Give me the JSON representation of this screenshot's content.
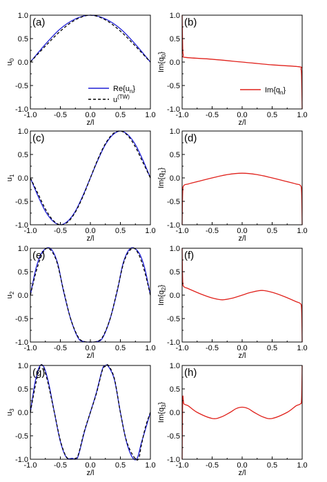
{
  "colors": {
    "blue": "#1f1fd6",
    "red": "#e0201a",
    "black": "#000000",
    "axis": "#000000"
  },
  "chart_data": [
    {
      "id": "a",
      "panel_label": "(a)",
      "type": "line",
      "xlabel": "z/l",
      "ylabel": "u",
      "ylabel_sub": "0",
      "xlim": [
        -1.0,
        1.0
      ],
      "ylim": [
        -1.0,
        1.0
      ],
      "xticks": [
        "-1.0",
        "-0.5",
        "0.0",
        "0.5",
        "1.0"
      ],
      "yticks": [
        "-1.0",
        "-0.5",
        "0.0",
        "0.5",
        "1.0"
      ],
      "series": [
        {
          "name": "Re{u_n}",
          "style": "solid",
          "color": "#1f1fd6",
          "x": [
            -1.0,
            -0.75,
            -0.5,
            -0.25,
            0.0,
            0.25,
            0.5,
            0.75,
            1.0
          ],
          "y": [
            0.0,
            0.38,
            0.71,
            0.92,
            1.0,
            0.92,
            0.71,
            0.38,
            0.0
          ]
        },
        {
          "name": "u^(TW)",
          "style": "dashed",
          "color": "#000000",
          "x": [
            -1.0,
            -0.75,
            -0.5,
            -0.25,
            0.0,
            0.25,
            0.5,
            0.75,
            1.0
          ],
          "y": [
            0.0,
            0.34,
            0.66,
            0.9,
            1.0,
            0.9,
            0.66,
            0.34,
            0.0
          ]
        }
      ],
      "legend": {
        "position": "bottom-right",
        "entries": [
          {
            "text": "Re{u",
            "sub": "n",
            "tail": "}",
            "style": "solid",
            "color": "#1f1fd6"
          },
          {
            "text": "u",
            "sup": "(TW)",
            "tail": "",
            "style": "dashed",
            "color": "#000000"
          }
        ]
      }
    },
    {
      "id": "b",
      "panel_label": "(b)",
      "type": "line",
      "xlabel": "z/l",
      "ylabel": "Im{q",
      "ylabel_sub": "0",
      "ylabel_tail": "}",
      "xlim": [
        -1.0,
        1.0
      ],
      "ylim": [
        -1.0,
        1.0
      ],
      "xticks": [
        "-1.0",
        "-0.5",
        "0.0",
        "0.5",
        "1.0"
      ],
      "yticks": [
        "-1.0",
        "-0.5",
        "0.0",
        "0.5",
        "1.0"
      ],
      "series": [
        {
          "name": "Im{q_n}",
          "style": "solid",
          "color": "#e0201a",
          "x": [
            -1.0,
            -0.99,
            -0.98,
            -0.95,
            -0.5,
            0.0,
            0.5,
            0.95,
            0.98,
            0.99,
            1.0
          ],
          "y": [
            1.0,
            0.3,
            0.15,
            0.1,
            0.06,
            0.0,
            -0.06,
            -0.1,
            -0.15,
            -0.3,
            -1.0
          ]
        }
      ],
      "legend": {
        "position": "bottom-right",
        "entries": [
          {
            "text": "Im{q",
            "sub": "n",
            "tail": "}",
            "style": "solid",
            "color": "#e0201a"
          }
        ]
      }
    },
    {
      "id": "c",
      "panel_label": "(c)",
      "type": "line",
      "xlabel": "z/l",
      "ylabel": "u",
      "ylabel_sub": "1",
      "xlim": [
        -1.0,
        1.0
      ],
      "ylim": [
        -1.0,
        1.0
      ],
      "xticks": [
        "-1.0",
        "-0.5",
        "0.0",
        "0.5",
        "1.0"
      ],
      "yticks": [
        "-1.0",
        "-0.5",
        "0.0",
        "0.5",
        "1.0"
      ],
      "series": [
        {
          "name": "Re{u_n}",
          "style": "solid",
          "color": "#1f1fd6",
          "x": [
            -1.0,
            -0.875,
            -0.75,
            -0.625,
            -0.5,
            -0.375,
            -0.25,
            -0.125,
            0.0,
            0.125,
            0.25,
            0.375,
            0.5,
            0.625,
            0.75,
            0.875,
            1.0
          ],
          "y": [
            0.0,
            -0.38,
            -0.71,
            -0.92,
            -1.0,
            -0.92,
            -0.71,
            -0.38,
            0.0,
            0.38,
            0.71,
            0.92,
            1.0,
            0.92,
            0.71,
            0.38,
            0.0
          ]
        },
        {
          "name": "u^(TW)",
          "style": "dashed",
          "color": "#000000",
          "x": [
            -1.0,
            -0.875,
            -0.75,
            -0.625,
            -0.5,
            -0.375,
            -0.25,
            -0.125,
            0.0,
            0.125,
            0.25,
            0.375,
            0.5,
            0.625,
            0.75,
            0.875,
            1.0
          ],
          "y": [
            0.0,
            -0.33,
            -0.66,
            -0.9,
            -1.0,
            -0.94,
            -0.73,
            -0.4,
            0.0,
            0.4,
            0.73,
            0.94,
            1.0,
            0.9,
            0.66,
            0.33,
            0.0
          ]
        }
      ]
    },
    {
      "id": "d",
      "panel_label": "(d)",
      "type": "line",
      "xlabel": "z/l",
      "ylabel": "Im{q",
      "ylabel_sub": "1",
      "ylabel_tail": "}",
      "xlim": [
        -1.0,
        1.0
      ],
      "ylim": [
        -1.0,
        1.0
      ],
      "xticks": [
        "-1.0",
        "-0.5",
        "0.0",
        "0.5",
        "1.0"
      ],
      "yticks": [
        "-1.0",
        "-0.5",
        "0.0",
        "0.5",
        "1.0"
      ],
      "series": [
        {
          "name": "Im{q_n}",
          "style": "solid",
          "color": "#e0201a",
          "x": [
            -1.0,
            -0.99,
            -0.97,
            -0.9,
            -0.75,
            -0.5,
            -0.25,
            0.0,
            0.25,
            0.5,
            0.75,
            0.9,
            0.97,
            0.99,
            1.0
          ],
          "y": [
            -1.0,
            -0.3,
            -0.16,
            -0.13,
            -0.08,
            0.0,
            0.07,
            0.1,
            0.07,
            0.0,
            -0.08,
            -0.13,
            -0.16,
            -0.3,
            -1.0
          ]
        }
      ]
    },
    {
      "id": "e",
      "panel_label": "(e)",
      "type": "line",
      "xlabel": "z/l",
      "ylabel": "u",
      "ylabel_sub": "2",
      "xlim": [
        -1.0,
        1.0
      ],
      "ylim": [
        -1.0,
        1.0
      ],
      "xticks": [
        "-1.0",
        "-0.5",
        "0.0",
        "0.5",
        "1.0"
      ],
      "yticks": [
        "-1.0",
        "-0.5",
        "0.0",
        "0.5",
        "1.0"
      ],
      "series": [
        {
          "name": "Re{u_n}",
          "style": "solid",
          "color": "#1f1fd6",
          "x": [
            -1.0,
            -0.9,
            -0.8,
            -0.67,
            -0.55,
            -0.45,
            -0.33,
            -0.2,
            -0.1,
            0.0,
            0.1,
            0.2,
            0.33,
            0.45,
            0.55,
            0.67,
            0.8,
            0.9,
            1.0
          ],
          "y": [
            0.0,
            0.6,
            0.92,
            1.0,
            0.7,
            0.1,
            -0.5,
            -0.92,
            -0.99,
            -1.0,
            -0.99,
            -0.92,
            -0.5,
            0.1,
            0.7,
            1.0,
            0.92,
            0.6,
            0.0
          ]
        },
        {
          "name": "u^(TW)",
          "style": "dashed",
          "color": "#000000",
          "x": [
            -1.0,
            -0.9,
            -0.8,
            -0.7,
            -0.57,
            -0.45,
            -0.33,
            -0.2,
            -0.1,
            0.0,
            0.1,
            0.2,
            0.33,
            0.45,
            0.57,
            0.7,
            0.8,
            0.9,
            1.0
          ],
          "y": [
            0.0,
            0.52,
            0.88,
            1.0,
            0.75,
            0.12,
            -0.5,
            -0.9,
            -0.99,
            -1.0,
            -0.99,
            -0.9,
            -0.5,
            0.12,
            0.75,
            1.0,
            0.88,
            0.52,
            0.0
          ]
        }
      ]
    },
    {
      "id": "f",
      "panel_label": "(f)",
      "type": "line",
      "xlabel": "z/l",
      "ylabel": "Im{q",
      "ylabel_sub": "2",
      "ylabel_tail": "}",
      "xlim": [
        -1.0,
        1.0
      ],
      "ylim": [
        -1.0,
        1.0
      ],
      "xticks": [
        "-1.0",
        "-0.5",
        "0.0",
        "0.5",
        "1.0"
      ],
      "yticks": [
        "-1.0",
        "-0.5",
        "0.0",
        "0.5",
        "1.0"
      ],
      "series": [
        {
          "name": "Im{q_n}",
          "style": "solid",
          "color": "#e0201a",
          "x": [
            -1.0,
            -0.99,
            -0.97,
            -0.9,
            -0.7,
            -0.5,
            -0.33,
            -0.15,
            0.0,
            0.15,
            0.33,
            0.5,
            0.7,
            0.9,
            0.97,
            0.99,
            1.0
          ],
          "y": [
            1.0,
            0.3,
            0.18,
            0.14,
            0.03,
            -0.06,
            -0.1,
            -0.06,
            0.0,
            0.06,
            0.1,
            0.06,
            -0.03,
            -0.14,
            -0.18,
            -0.3,
            -1.0
          ]
        }
      ]
    },
    {
      "id": "g",
      "panel_label": "(g)",
      "type": "line",
      "xlabel": "z/l",
      "ylabel": "u",
      "ylabel_sub": "3",
      "xlim": [
        -1.0,
        1.0
      ],
      "ylim": [
        -1.0,
        1.0
      ],
      "xticks": [
        "-1.0",
        "-0.5",
        "0.0",
        "0.5",
        "1.0"
      ],
      "yticks": [
        "-1.0",
        "-0.5",
        "0.0",
        "0.5",
        "1.0"
      ],
      "series": [
        {
          "name": "Re{u_n}",
          "style": "solid",
          "color": "#1f1fd6",
          "x": [
            -1.0,
            -0.92,
            -0.85,
            -0.78,
            -0.7,
            -0.6,
            -0.5,
            -0.4,
            -0.3,
            -0.25,
            -0.2,
            -0.1,
            0.0,
            0.1,
            0.2,
            0.25,
            0.3,
            0.4,
            0.5,
            0.6,
            0.7,
            0.78,
            0.85,
            0.92,
            1.0
          ],
          "y": [
            0.0,
            0.65,
            0.97,
            0.98,
            0.65,
            0.0,
            -0.62,
            -0.96,
            -0.98,
            -1.0,
            -0.92,
            -0.42,
            0.0,
            0.42,
            0.92,
            1.0,
            0.98,
            0.7,
            0.0,
            -0.62,
            -0.96,
            -0.98,
            -0.65,
            -0.35,
            0.0
          ]
        },
        {
          "name": "u^(TW)",
          "style": "dashed",
          "color": "#000000",
          "x": [
            -1.0,
            -0.92,
            -0.85,
            -0.8,
            -0.72,
            -0.6,
            -0.5,
            -0.4,
            -0.3,
            -0.25,
            -0.2,
            -0.1,
            0.0,
            0.1,
            0.2,
            0.25,
            0.3,
            0.4,
            0.5,
            0.6,
            0.72,
            0.8,
            0.85,
            0.92,
            1.0
          ],
          "y": [
            0.0,
            0.55,
            0.93,
            1.0,
            0.7,
            0.0,
            -0.6,
            -0.95,
            -1.0,
            -0.98,
            -0.9,
            -0.4,
            0.0,
            0.4,
            0.9,
            0.98,
            1.0,
            0.72,
            0.0,
            -0.6,
            -0.94,
            -1.0,
            -0.7,
            -0.3,
            0.0
          ]
        }
      ]
    },
    {
      "id": "h",
      "panel_label": "(h)",
      "type": "line",
      "xlabel": "z/l",
      "ylabel": "Im{q",
      "ylabel_sub": "3",
      "ylabel_tail": "}",
      "xlim": [
        -1.0,
        1.0
      ],
      "ylim": [
        -1.0,
        1.0
      ],
      "xticks": [
        "-1.0",
        "-0.5",
        "0.0",
        "0.5",
        "1.0"
      ],
      "yticks": [
        "-1.0",
        "-0.5",
        "0.0",
        "0.5",
        "1.0"
      ],
      "series": [
        {
          "name": "Im{q_n}",
          "style": "solid",
          "color": "#e0201a",
          "x": [
            -1.0,
            -0.99,
            -0.97,
            -0.9,
            -0.75,
            -0.5,
            -0.35,
            -0.2,
            -0.1,
            0.0,
            0.1,
            0.2,
            0.35,
            0.5,
            0.75,
            0.9,
            0.97,
            0.99,
            1.0
          ],
          "y": [
            -1.0,
            0.28,
            0.18,
            0.14,
            0.0,
            -0.13,
            -0.1,
            0.0,
            0.08,
            0.11,
            0.08,
            0.0,
            -0.1,
            -0.13,
            0.0,
            0.14,
            0.18,
            0.28,
            1.0
          ]
        }
      ]
    }
  ]
}
